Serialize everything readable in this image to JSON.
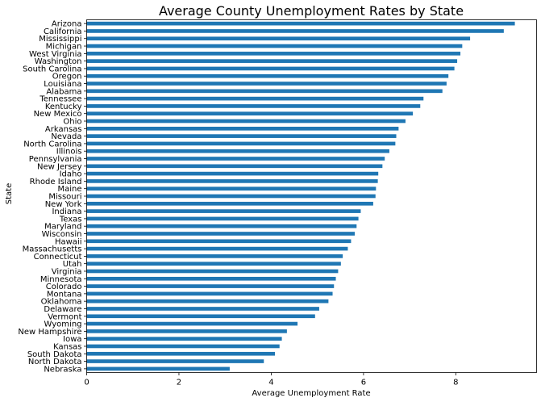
{
  "chart_data": {
    "type": "bar",
    "orientation": "horizontal",
    "title": "Average County Unemployment Rates by State",
    "xlabel": "Average Unemployment Rate",
    "ylabel": "State",
    "xlim": [
      0,
      9.75
    ],
    "xticks": [
      0,
      2,
      4,
      6,
      8
    ],
    "grid": false,
    "bar_color": "#1f77b4",
    "categories": [
      "Arizona",
      "California",
      "Mississippi",
      "Michigan",
      "West Virginia",
      "Washington",
      "South Carolina",
      "Oregon",
      "Louisiana",
      "Alabama",
      "Tennessee",
      "Kentucky",
      "New Mexico",
      "Ohio",
      "Arkansas",
      "Nevada",
      "North Carolina",
      "Illinois",
      "Pennsylvania",
      "New Jersey",
      "Idaho",
      "Rhode Island",
      "Maine",
      "Missouri",
      "New York",
      "Indiana",
      "Texas",
      "Maryland",
      "Wisconsin",
      "Hawaii",
      "Massachusetts",
      "Connecticut",
      "Utah",
      "Virginia",
      "Minnesota",
      "Colorado",
      "Montana",
      "Oklahoma",
      "Delaware",
      "Vermont",
      "Wyoming",
      "New Hampshire",
      "Iowa",
      "Kansas",
      "South Dakota",
      "North Dakota",
      "Nebraska"
    ],
    "values": [
      9.28,
      9.04,
      8.31,
      8.14,
      8.1,
      8.03,
      7.97,
      7.84,
      7.8,
      7.71,
      7.3,
      7.23,
      7.07,
      6.91,
      6.76,
      6.71,
      6.69,
      6.56,
      6.46,
      6.41,
      6.32,
      6.31,
      6.27,
      6.26,
      6.21,
      5.94,
      5.89,
      5.85,
      5.81,
      5.73,
      5.66,
      5.55,
      5.51,
      5.45,
      5.4,
      5.36,
      5.33,
      5.24,
      5.04,
      4.95,
      4.57,
      4.34,
      4.23,
      4.18,
      4.08,
      3.84,
      3.1
    ]
  }
}
